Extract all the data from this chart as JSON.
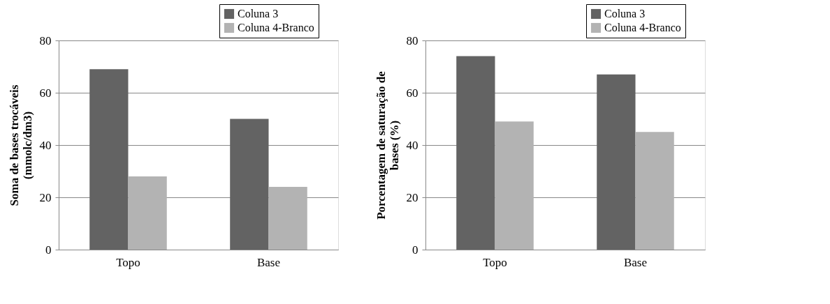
{
  "chart_data": [
    {
      "type": "bar",
      "ylabel": "Soma de bases trocáveis (mmolc/dm3)",
      "categories": [
        "Topo",
        "Base"
      ],
      "series": [
        {
          "name": "Coluna 3",
          "color": "#636363",
          "values": [
            69,
            50
          ]
        },
        {
          "name": "Coluna 4-Branco",
          "color": "#b3b3b3",
          "values": [
            28,
            24
          ]
        }
      ],
      "ylim": [
        0,
        80
      ],
      "yticks": [
        0,
        20,
        40,
        60,
        80
      ],
      "grid": "y",
      "legend": "top right"
    },
    {
      "type": "bar",
      "ylabel": "Porcentagem de saturação de bases (%)",
      "categories": [
        "Topo",
        "Base"
      ],
      "series": [
        {
          "name": "Coluna 3",
          "color": "#636363",
          "values": [
            74,
            67
          ]
        },
        {
          "name": "Coluna 4-Branco",
          "color": "#b3b3b3",
          "values": [
            49,
            45
          ]
        }
      ],
      "ylim": [
        0,
        80
      ],
      "yticks": [
        0,
        20,
        40,
        60,
        80
      ],
      "grid": "y",
      "legend": "top right"
    }
  ]
}
